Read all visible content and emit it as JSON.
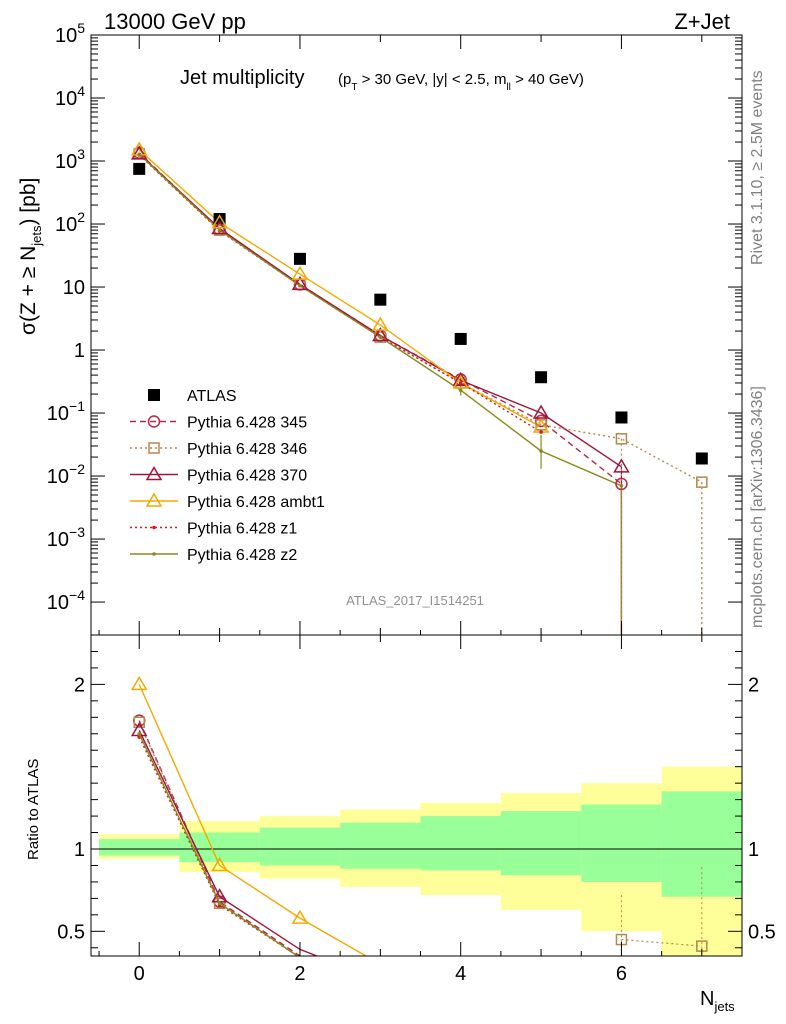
{
  "header": {
    "left": "13000 GeV pp",
    "right": "Z+Jet"
  },
  "side_labels": {
    "rivet": "Rivet 3.1.10, ≥ 2.5M events",
    "mcplots": "mcplots.cern.ch [arXiv:1306.3436]"
  },
  "chart_data": [
    {
      "type": "scatter",
      "panel": "main",
      "title_main": "Jet multiplicity",
      "title_cuts": "(p_T > 30 GeV, |y| < 2.5, m_ll > 40 GeV)",
      "ylabel": "σ(Z + ≥ N_jets) [pb]",
      "xlabel": "N_jets",
      "yscale": "log",
      "ylim": [
        3e-05,
        100000
      ],
      "xlim": [
        -0.6,
        7.5
      ],
      "watermark": "ATLAS_2017_I1514251",
      "x_ticks": [
        "0",
        "2",
        "4",
        "6"
      ],
      "y_ticks": [
        "10^-4",
        "10^-3",
        "10^-2",
        "10^-1",
        "1",
        "10",
        "10^2",
        "10^3",
        "10^4",
        "10^5"
      ],
      "legend_position": "lower-left",
      "series": [
        {
          "name": "ATLAS",
          "marker": "filled-square",
          "color": "#000000",
          "x": [
            0,
            1,
            2,
            3,
            4,
            5,
            6,
            7
          ],
          "y": [
            750,
            120,
            28,
            6.3,
            1.5,
            0.37,
            0.085,
            0.019
          ]
        },
        {
          "name": "Pythia 6.428 345",
          "marker": "open-circle",
          "line": "dashed",
          "color": "#b22a4a",
          "x": [
            0,
            1,
            2,
            3,
            4,
            5,
            6
          ],
          "y": [
            1350,
            82,
            11,
            1.7,
            0.34,
            0.075,
            0.0075
          ]
        },
        {
          "name": "Pythia 6.428 346",
          "marker": "open-square",
          "line": "dotted",
          "color": "#b8874a",
          "x": [
            0,
            1,
            2,
            3,
            4,
            5,
            6,
            7
          ],
          "y": [
            1300,
            80,
            11,
            1.6,
            0.3,
            0.065,
            0.039,
            0.008
          ]
        },
        {
          "name": "Pythia 6.428 370",
          "marker": "open-triangle",
          "line": "solid",
          "color": "#a0143c",
          "x": [
            0,
            1,
            2,
            3,
            4,
            5,
            6
          ],
          "y": [
            1300,
            85,
            11,
            1.7,
            0.33,
            0.1,
            0.014
          ]
        },
        {
          "name": "Pythia 6.428 ambt1",
          "marker": "open-triangle",
          "line": "solid",
          "color": "#f2a900",
          "x": [
            0,
            1,
            2,
            3,
            4,
            5
          ],
          "y": [
            1500,
            105,
            16,
            2.5,
            0.3,
            0.06
          ]
        },
        {
          "name": "Pythia 6.428 z1",
          "marker": "dot",
          "line": "dotted",
          "color": "#d41c1c",
          "x": [
            0,
            1,
            2,
            3,
            4,
            5
          ],
          "y": [
            1250,
            78,
            10.5,
            1.6,
            0.3,
            0.05
          ]
        },
        {
          "name": "Pythia 6.428 z2",
          "marker": "dot",
          "line": "solid",
          "color": "#8a8a1c",
          "x": [
            0,
            1,
            2,
            3,
            4,
            5,
            6
          ],
          "y": [
            1280,
            80,
            10.5,
            1.6,
            0.23,
            0.025,
            0.007
          ]
        }
      ]
    },
    {
      "type": "line",
      "panel": "ratio",
      "ylabel": "Ratio to ATLAS",
      "ylim": [
        0.35,
        2.3
      ],
      "xlim": [
        -0.6,
        7.5
      ],
      "y_ticks": [
        "0.5",
        "1",
        "2"
      ],
      "band_edges": [
        -0.5,
        0.5,
        1.5,
        2.5,
        3.5,
        4.5,
        5.5,
        6.5,
        7.5
      ],
      "band_outer": [
        [
          0.94,
          1.09
        ],
        [
          0.86,
          1.17
        ],
        [
          0.82,
          1.2
        ],
        [
          0.77,
          1.24
        ],
        [
          0.72,
          1.28
        ],
        [
          0.63,
          1.34
        ],
        [
          0.5,
          1.4
        ],
        [
          0.35,
          1.5
        ]
      ],
      "band_inner": [
        [
          0.96,
          1.06
        ],
        [
          0.92,
          1.1
        ],
        [
          0.9,
          1.13
        ],
        [
          0.88,
          1.16
        ],
        [
          0.87,
          1.2
        ],
        [
          0.84,
          1.23
        ],
        [
          0.8,
          1.27
        ],
        [
          0.71,
          1.35
        ]
      ],
      "series": [
        {
          "name": "Pythia 6.428 345",
          "color": "#b22a4a",
          "x": [
            0,
            1,
            2,
            3
          ],
          "y": [
            1.78,
            0.68,
            0.35,
            0.2
          ]
        },
        {
          "name": "Pythia 6.428 346",
          "color": "#b8874a",
          "x": [
            0,
            1,
            2,
            3,
            6,
            7
          ],
          "y": [
            1.77,
            0.67,
            0.34,
            0.2,
            0.45,
            0.41
          ]
        },
        {
          "name": "Pythia 6.428 370",
          "color": "#a0143c",
          "x": [
            0,
            1,
            2,
            3
          ],
          "y": [
            1.72,
            0.71,
            0.39,
            0.2
          ]
        },
        {
          "name": "Pythia 6.428 ambt1",
          "color": "#f2a900",
          "x": [
            0,
            1,
            2,
            3
          ],
          "y": [
            2.0,
            0.9,
            0.58,
            0.3
          ]
        },
        {
          "name": "Pythia 6.428 z1",
          "color": "#d41c1c",
          "x": [
            0,
            1,
            2,
            3
          ],
          "y": [
            1.68,
            0.66,
            0.34,
            0.2
          ]
        },
        {
          "name": "Pythia 6.428 z2",
          "color": "#8a8a1c",
          "x": [
            0,
            1,
            2,
            3
          ],
          "y": [
            1.7,
            0.67,
            0.34,
            0.2
          ]
        }
      ]
    }
  ]
}
